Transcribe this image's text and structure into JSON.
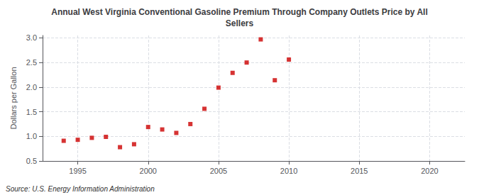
{
  "chart_data": {
    "type": "scatter",
    "title": "Annual West Virginia Conventional Gasoline Premium Through Company Outlets Price by All\nSellers",
    "ylabel": "Dollars per Gallon",
    "annotation": "Source: U.S. Energy Information Administration",
    "x": [
      1994,
      1995,
      1996,
      1997,
      1998,
      1999,
      2000,
      2001,
      2002,
      2003,
      2004,
      2005,
      2006,
      2007,
      2008,
      2009,
      2010
    ],
    "values": [
      0.91,
      0.93,
      0.97,
      0.99,
      0.78,
      0.84,
      1.19,
      1.14,
      1.07,
      1.25,
      1.56,
      1.99,
      2.29,
      2.5,
      2.97,
      2.14,
      2.56
    ],
    "color": "#cc0000",
    "marker": "square",
    "xlim": [
      1992.5,
      2022.5
    ],
    "xticks": [
      1995,
      2000,
      2005,
      2010,
      2015,
      2020
    ],
    "ylim": [
      0.5,
      3.05
    ],
    "yticks": [
      0.5,
      {
        "value": 1,
        "label": "1.0"
      },
      1.5,
      {
        "value": 2,
        "label": "2.0"
      },
      2.5,
      {
        "value": 3,
        "label": "3.0"
      }
    ],
    "grid": true
  }
}
